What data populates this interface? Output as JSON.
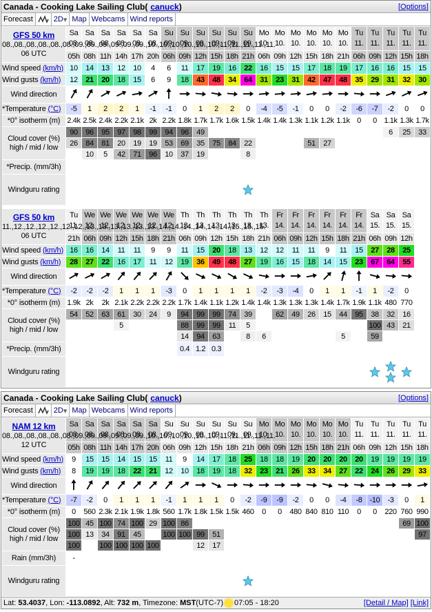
{
  "panels": [
    {
      "title": "Canada - Cooking Lake Sailing Club",
      "user": "canuck",
      "options": "[Options]",
      "tabs": {
        "forecast": "Forecast",
        "mode": "2D",
        "map": "Map",
        "webcams": "Webcams",
        "reports": "Wind reports"
      },
      "blocks": [
        {
          "model": "GFS 50 km",
          "date": [
            "08.",
            "08.",
            "08.",
            "08.",
            "08.",
            "08.",
            "09.",
            "09.",
            "09.",
            "09.",
            "09.",
            "09.",
            "10.",
            "10.",
            "10.",
            "10.",
            "10.",
            "10.",
            "11.",
            "11.",
            "11.",
            "11.",
            "11."
          ],
          "run": "06 UTC",
          "labels": {
            "speed": "Wind speed",
            "gusts": "Wind gusts",
            "unit": "(km/h)",
            "direction": "Wind direction",
            "temp": "*Temperature",
            "temp_unit": "(°C)",
            "iso": "*0° isotherm (m)",
            "cloud1": "Cloud cover (%)",
            "cloud2": "high / mid / low",
            "precip": "*Precip. (mm/3h)",
            "rating": "Windguru rating"
          },
          "day": [
            "Sa",
            "Sa",
            "Sa",
            "Sa",
            "Sa",
            "Sa",
            "Su",
            "Su",
            "Su",
            "Su",
            "Su",
            "Su",
            "Mo",
            "Mo",
            "Mo",
            "Mo",
            "Mo",
            "Mo",
            "Tu",
            "Tu",
            "Tu",
            "Tu",
            "Tu"
          ],
          "hour": [
            "05h",
            "08h",
            "11h",
            "14h",
            "17h",
            "20h",
            "06h",
            "09h",
            "12h",
            "15h",
            "18h",
            "21h",
            "06h",
            "09h",
            "12h",
            "15h",
            "18h",
            "21h",
            "06h",
            "09h",
            "12h",
            "15h",
            "18h"
          ],
          "speed": [
            10,
            14,
            13,
            12,
            10,
            4,
            6,
            11,
            17,
            19,
            16,
            22,
            16,
            15,
            15,
            17,
            18,
            19,
            17,
            16,
            16,
            15,
            15
          ],
          "gusts": [
            12,
            21,
            20,
            18,
            15,
            6,
            9,
            18,
            43,
            48,
            34,
            64,
            31,
            23,
            31,
            42,
            47,
            48,
            35,
            29,
            31,
            32,
            30
          ],
          "direction_deg": [
            30,
            30,
            60,
            65,
            80,
            60,
            0,
            90,
            95,
            100,
            95,
            90,
            85,
            85,
            85,
            80,
            85,
            90,
            95,
            90,
            70,
            65,
            70
          ],
          "temp": [
            -5,
            1,
            2,
            2,
            1,
            -1,
            -1,
            0,
            1,
            2,
            2,
            0,
            -4,
            -5,
            -1,
            0,
            0,
            -2,
            -6,
            -7,
            -2,
            0,
            0
          ],
          "iso": [
            "2.4k",
            "2.5k",
            "2.4k",
            "2.2k",
            "2.1k",
            "2k",
            "2.2k",
            "1.8k",
            "1.7k",
            "1.7k",
            "1.6k",
            "1.5k",
            "1.4k",
            "1.4k",
            "1.3k",
            "1.1k",
            "1.2k",
            "1.1k",
            "0",
            "0",
            "1.1k",
            "1.3k",
            "1.7k"
          ],
          "cloud_high": [
            "90",
            "96",
            "95",
            "97",
            "98",
            "99",
            "94",
            "96",
            "49",
            "",
            "",
            "",
            "",
            "",
            "",
            "",
            "",
            "",
            "",
            "",
            "6",
            "25",
            "33"
          ],
          "cloud_mid": [
            "26",
            "84",
            "81",
            "20",
            "19",
            "19",
            "53",
            "69",
            "35",
            "75",
            "84",
            "22",
            "",
            "",
            "",
            "51",
            "27",
            "",
            "",
            "",
            "",
            "",
            ""
          ],
          "cloud_low": [
            "",
            "10",
            "5",
            "42",
            "71",
            "96",
            "10",
            "37",
            "19",
            "",
            "",
            "8",
            "",
            "",
            "",
            "",
            "",
            "",
            "",
            "",
            "",
            "",
            ""
          ],
          "precip": [
            "",
            "",
            "",
            "",
            "",
            "",
            "",
            "",
            "",
            "",
            "",
            "",
            "",
            "",
            "",
            "",
            "",
            "",
            "",
            "",
            "",
            "",
            ""
          ],
          "rating": [
            0,
            0,
            0,
            0,
            0,
            0,
            0,
            0,
            0,
            0,
            0,
            1,
            0,
            0,
            0,
            0,
            0,
            0,
            0,
            0,
            0,
            0,
            0
          ]
        },
        {
          "model": "GFS 50 km",
          "date": [
            "11.",
            "12.",
            "12.",
            "12.",
            "12.",
            "12.",
            "12.",
            "13.",
            "13.",
            "13.",
            "13.",
            "13.",
            "13.",
            "14.",
            "14.",
            "14.",
            "14.",
            "14.",
            "14.",
            "15.",
            "15.",
            "15."
          ],
          "run": "06 UTC",
          "labels": {
            "speed": "Wind speed",
            "gusts": "Wind gusts",
            "unit": "(km/h)",
            "direction": "Wind direction",
            "temp": "*Temperature",
            "temp_unit": "(°C)",
            "iso": "*0° isotherm (m)",
            "cloud1": "Cloud cover (%)",
            "cloud2": "high / mid / low",
            "precip": "*Precip. (mm/3h)",
            "rating": "Windguru rating"
          },
          "day": [
            "Tu",
            "We",
            "We",
            "We",
            "We",
            "We",
            "We",
            "Th",
            "Th",
            "Th",
            "Th",
            "Th",
            "Th",
            "Fr",
            "Fr",
            "Fr",
            "Fr",
            "Fr",
            "Fr",
            "Sa",
            "Sa",
            "Sa"
          ],
          "hour": [
            "21h",
            "06h",
            "09h",
            "12h",
            "15h",
            "18h",
            "21h",
            "06h",
            "09h",
            "12h",
            "15h",
            "18h",
            "21h",
            "06h",
            "09h",
            "12h",
            "15h",
            "18h",
            "21h",
            "06h",
            "09h",
            "12h"
          ],
          "speed": [
            16,
            16,
            14,
            11,
            11,
            9,
            9,
            11,
            15,
            20,
            18,
            13,
            12,
            12,
            11,
            11,
            9,
            11,
            15,
            27,
            28,
            25
          ],
          "gusts": [
            28,
            27,
            22,
            16,
            17,
            11,
            12,
            19,
            36,
            49,
            48,
            27,
            19,
            16,
            15,
            18,
            14,
            15,
            23,
            67,
            64,
            55
          ],
          "direction_deg": [
            60,
            65,
            60,
            40,
            40,
            45,
            30,
            135,
            115,
            115,
            120,
            115,
            100,
            90,
            90,
            80,
            45,
            15,
            0,
            105,
            95,
            95
          ],
          "temp": [
            -2,
            -2,
            -2,
            1,
            1,
            1,
            -3,
            0,
            1,
            1,
            1,
            1,
            -2,
            -3,
            -4,
            0,
            1,
            1,
            -1,
            1,
            -2,
            0
          ],
          "iso": [
            "1.9k",
            "2k",
            "2k",
            "2.1k",
            "2.2k",
            "2.2k",
            "2.2k",
            "1.7k",
            "1.4k",
            "1.1k",
            "1.2k",
            "1.4k",
            "1.4k",
            "1.3k",
            "1.3k",
            "1.3k",
            "1.4k",
            "1.7k",
            "1.9k",
            "1.1k",
            "480",
            "770"
          ],
          "cloud_high": [
            "54",
            "52",
            "63",
            "61",
            "30",
            "24",
            "9",
            "94",
            "99",
            "99",
            "74",
            "39",
            "",
            "62",
            "49",
            "26",
            "15",
            "44",
            "95",
            "38",
            "32",
            "16"
          ],
          "cloud_mid": [
            "",
            "",
            "",
            "5",
            "",
            "",
            "",
            "88",
            "99",
            "99",
            "11",
            "5",
            "",
            "",
            "",
            "",
            "",
            "",
            "",
            "100",
            "43",
            "21"
          ],
          "cloud_low": [
            "",
            "",
            "",
            "",
            "",
            "",
            "",
            "14",
            "94",
            "63",
            "",
            "8",
            "6",
            "",
            "",
            "",
            "",
            "5",
            "",
            "59",
            "",
            ""
          ],
          "precip": [
            "",
            "",
            "",
            "",
            "",
            "",
            "",
            "0.4",
            "1.2",
            "0.3",
            "",
            "",
            "",
            "",
            "",
            "",
            "",
            "",
            "",
            "",
            "",
            ""
          ],
          "rating": [
            0,
            0,
            0,
            0,
            0,
            0,
            0,
            0,
            0,
            0,
            0,
            0,
            0,
            0,
            0,
            0,
            0,
            0,
            0,
            1,
            2,
            1
          ]
        }
      ]
    },
    {
      "title": "Canada - Cooking Lake Sailing Club",
      "user": "canuck",
      "options": "[Options]",
      "tabs": {
        "forecast": "Forecast",
        "mode": "2D",
        "map": "Map",
        "webcams": "Webcams",
        "reports": "Wind reports"
      },
      "blocks": [
        {
          "model": "NAM 12 km",
          "date": [
            "08.",
            "08.",
            "08.",
            "08.",
            "08.",
            "08.",
            "09.",
            "09.",
            "09.",
            "09.",
            "09.",
            "09.",
            "10.",
            "10.",
            "10.",
            "10.",
            "10.",
            "10.",
            "11.",
            "11.",
            "11.",
            "11.",
            "11."
          ],
          "run": "12 UTC",
          "labels": {
            "speed": "Wind speed",
            "gusts": "Wind gusts",
            "unit": "(km/h)",
            "direction": "Wind direction",
            "temp": "*Temperature",
            "temp_unit": "(°C)",
            "iso": "*0° isotherm (m)",
            "cloud1": "Cloud cover (%)",
            "cloud2": "high / mid / low",
            "precip": "Rain (mm/3h)",
            "rating": "Windguru rating"
          },
          "day": [
            "Sa",
            "Sa",
            "Sa",
            "Sa",
            "Sa",
            "Sa",
            "Su",
            "Su",
            "Su",
            "Su",
            "Su",
            "Su",
            "Mo",
            "Mo",
            "Mo",
            "Mo",
            "Mo",
            "Mo",
            "Tu",
            "Tu",
            "Tu",
            "Tu",
            "Tu"
          ],
          "hour": [
            "05h",
            "08h",
            "11h",
            "14h",
            "17h",
            "20h",
            "06h",
            "09h",
            "12h",
            "15h",
            "18h",
            "21h",
            "06h",
            "09h",
            "12h",
            "15h",
            "18h",
            "21h",
            "06h",
            "09h",
            "12h",
            "15h",
            "18h"
          ],
          "speed": [
            9,
            15,
            15,
            14,
            15,
            15,
            11,
            9,
            14,
            17,
            18,
            25,
            18,
            18,
            19,
            20,
            20,
            20,
            20,
            19,
            19,
            19,
            19
          ],
          "gusts": [
            8,
            19,
            19,
            18,
            22,
            21,
            12,
            10,
            18,
            19,
            18,
            32,
            23,
            21,
            26,
            33,
            34,
            27,
            22,
            24,
            26,
            29,
            33
          ],
          "direction_deg": [
            0,
            30,
            40,
            40,
            45,
            45,
            40,
            55,
            90,
            115,
            90,
            95,
            90,
            90,
            90,
            95,
            105,
            95,
            95,
            90,
            90,
            90,
            80
          ],
          "temp": [
            -7,
            -2,
            0,
            1,
            1,
            1,
            -1,
            1,
            1,
            1,
            0,
            -2,
            -9,
            -9,
            -2,
            0,
            0,
            -4,
            -8,
            -10,
            -3,
            0,
            1
          ],
          "iso": [
            "0",
            "560",
            "2.3k",
            "2.1k",
            "1.9k",
            "1.8k",
            "560",
            "1.7k",
            "1.8k",
            "1.5k",
            "1.5k",
            "460",
            "0",
            "0",
            "480",
            "840",
            "810",
            "110",
            "0",
            "0",
            "220",
            "760",
            "990"
          ],
          "cloud_high": [
            "100",
            "45",
            "100",
            "74",
            "100",
            "29",
            "100",
            "86",
            "",
            "",
            "",
            "",
            "",
            "",
            "",
            "",
            "",
            "",
            "",
            "",
            "",
            "69",
            "100"
          ],
          "cloud_mid": [
            "100",
            "13",
            "34",
            "91",
            "45",
            "",
            "100",
            "100",
            "99",
            "51",
            "",
            "",
            "",
            "",
            "",
            "",
            "",
            "",
            "",
            "",
            "",
            "",
            "97"
          ],
          "cloud_low": [
            "100",
            "",
            "100",
            "100",
            "100",
            "100",
            "",
            "",
            "12",
            "17",
            "",
            "",
            "",
            "",
            "",
            "",
            "",
            "",
            "",
            "",
            "",
            "",
            ""
          ],
          "precip": [
            "-",
            "",
            "",
            "",
            "",
            "",
            "",
            "",
            "",
            "",
            "",
            "",
            "",
            "",
            "",
            "",
            "",
            "",
            "",
            "",
            "",
            "",
            ""
          ],
          "rating": [
            0,
            0,
            0,
            0,
            0,
            0,
            0,
            0,
            0,
            0,
            0,
            1,
            0,
            0,
            0,
            0,
            0,
            0,
            0,
            0,
            0,
            0,
            0
          ]
        }
      ],
      "footer": {
        "lat_label": "Lat:",
        "lat": "53.4037",
        "lon_label": ", Lon:",
        "lon": "-113.0892",
        "alt_label": ", Alt:",
        "alt": "732 m",
        "tz_label": ", Timezone:",
        "tz": "MST",
        "tz_offset": "(UTC-7)",
        "sun_icon": "sun-icon",
        "sun": "07:05 - 18:20",
        "detail": "[Detail / Map]",
        "link": "[Link]"
      }
    }
  ]
}
